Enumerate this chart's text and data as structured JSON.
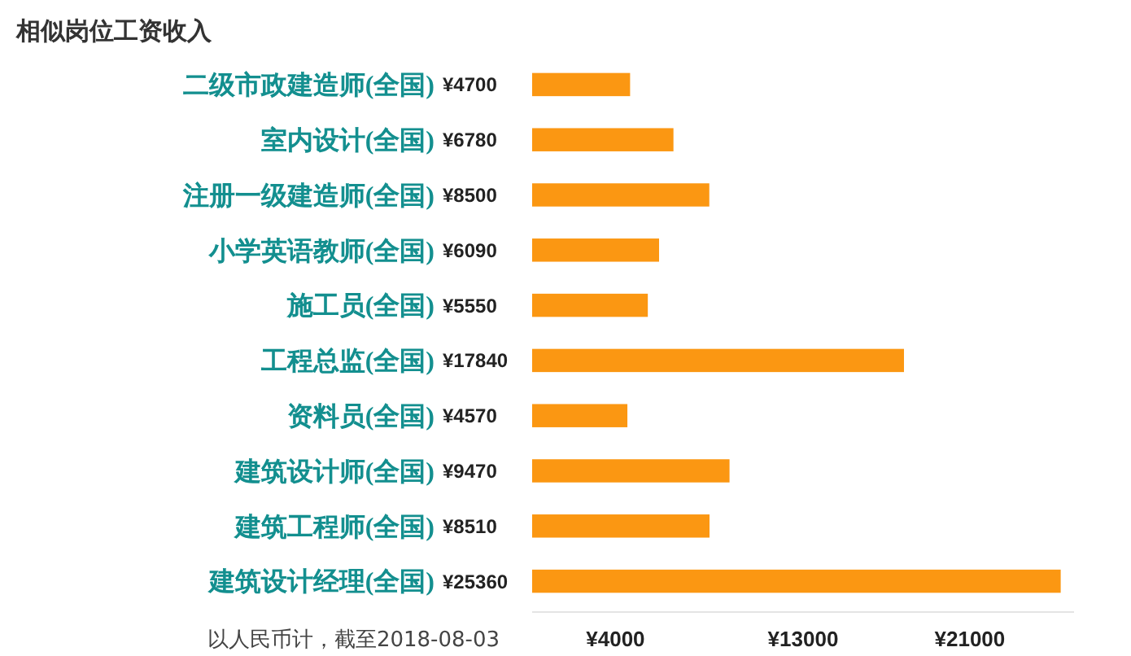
{
  "chart_data": {
    "type": "bar",
    "orientation": "horizontal",
    "title": "相似岗位工资收入",
    "categories": [
      "二级市政建造师(全国)",
      "室内设计(全国)",
      "注册一级建造师(全国)",
      "小学英语教师(全国)",
      "施工员(全国)",
      "工程总监(全国)",
      "资料员(全国)",
      "建筑设计师(全国)",
      "建筑工程师(全国)",
      "建筑设计经理(全国)"
    ],
    "values": [
      4700,
      6780,
      8500,
      6090,
      5550,
      17840,
      4570,
      9470,
      8510,
      25360
    ],
    "value_labels": [
      "¥4700",
      "¥6780",
      "¥8500",
      "¥6090",
      "¥5550",
      "¥17840",
      "¥4570",
      "¥9470",
      "¥8510",
      "¥25360"
    ],
    "color": "#fb9712",
    "xlim": [
      0,
      26000
    ],
    "xticks": [
      {
        "value": 4000,
        "label": "¥4000"
      },
      {
        "value": 13000,
        "label": "¥13000"
      },
      {
        "value": 21000,
        "label": "¥21000"
      }
    ],
    "annotations": [
      "以人民币计，截至2018-08-03"
    ],
    "grid": false
  }
}
